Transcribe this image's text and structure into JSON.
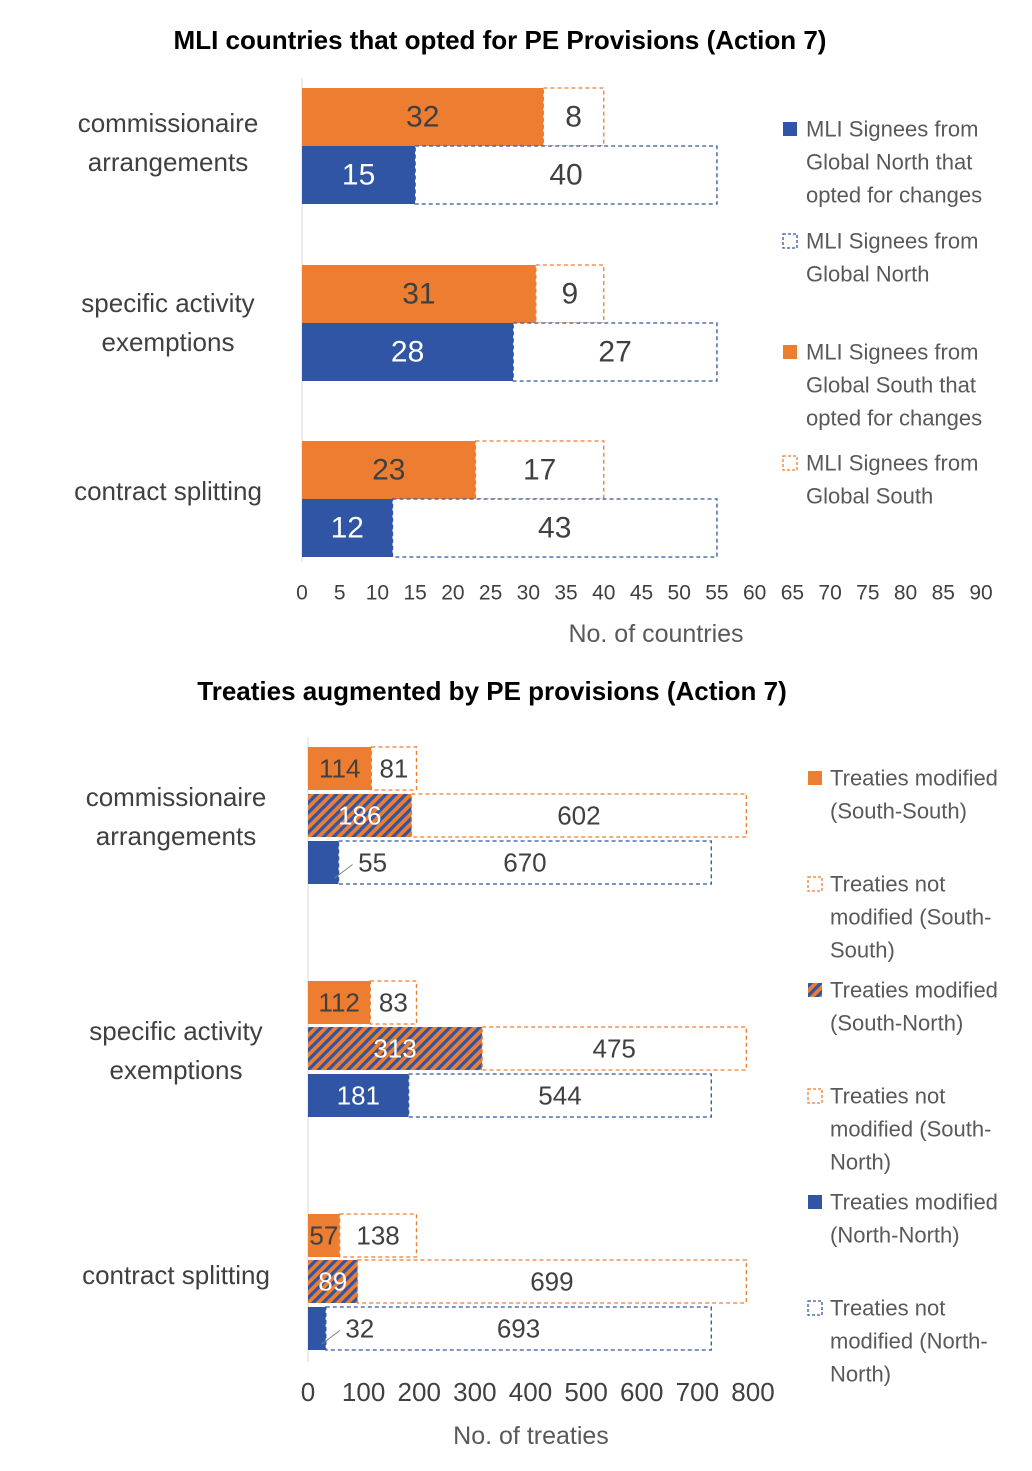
{
  "colors": {
    "north": "#2f55a4",
    "south": "#ed7d31",
    "label_dark": "#404040",
    "label_light": "#ffffff"
  },
  "chart_data": [
    {
      "type": "bar",
      "orientation": "horizontal",
      "stacked": true,
      "title": "MLI countries that opted for PE Provisions (Action 7)",
      "categories": [
        "commissionaire arrangements",
        "specific activity exemptions",
        "contract splitting"
      ],
      "category_lines": [
        [
          "commissionaire",
          "arrangements"
        ],
        [
          "specific activity",
          "exemptions"
        ],
        [
          "contract splitting"
        ]
      ],
      "xlabel": "No. of countries",
      "xlim": [
        0,
        90
      ],
      "xticks": [
        "0",
        "5",
        "10",
        "15",
        "20",
        "25",
        "30",
        "35",
        "40",
        "45",
        "50",
        "55",
        "60",
        "65",
        "70",
        "75",
        "80",
        "85",
        "90"
      ],
      "grid": false,
      "legend_position": "right",
      "series": [
        {
          "name": "MLI Signees from Global North that opted for changes",
          "group": "north",
          "style": "solid",
          "values": [
            15,
            28,
            12
          ]
        },
        {
          "name": "MLI Signees from Global North",
          "group": "north",
          "style": "dashed",
          "values": [
            40,
            27,
            43
          ]
        },
        {
          "name": "MLI Signees from Global South that opted for changes",
          "group": "south",
          "style": "solid",
          "values": [
            32,
            31,
            23
          ]
        },
        {
          "name": "MLI Signees from Global South",
          "group": "south",
          "style": "dashed",
          "values": [
            8,
            9,
            17
          ]
        }
      ],
      "legend": [
        {
          "lines": [
            "MLI Signees from",
            "Global North that",
            "opted for changes"
          ]
        },
        {
          "lines": [
            "MLI Signees from",
            "Global North"
          ]
        },
        {
          "lines": [
            "MLI Signees from",
            "Global South that",
            "opted for changes"
          ]
        },
        {
          "lines": [
            "MLI Signees from",
            "Global South"
          ]
        }
      ]
    },
    {
      "type": "bar",
      "orientation": "horizontal",
      "stacked": true,
      "title": "Treaties augmented by PE provisions (Action 7)",
      "categories": [
        "commissionaire arrangements",
        "specific activity exemptions",
        "contract splitting"
      ],
      "category_lines": [
        [
          "commissionaire",
          "arrangements"
        ],
        [
          "specific activity",
          "exemptions"
        ],
        [
          "contract splitting"
        ]
      ],
      "xlabel": "No. of treaties",
      "xlim": [
        0,
        800
      ],
      "xticks": [
        "0",
        "100",
        "200",
        "300",
        "400",
        "500",
        "600",
        "700",
        "800"
      ],
      "grid": false,
      "legend_position": "right",
      "series": [
        {
          "name": "Treaties modified (South-South)",
          "group": "south",
          "style": "solid",
          "values": [
            114,
            112,
            57
          ]
        },
        {
          "name": "Treaties not modified (South-South)",
          "group": "south",
          "style": "dashed",
          "values": [
            81,
            83,
            138
          ]
        },
        {
          "name": "Treaties modified (South-North)",
          "group": "mixed",
          "style": "hatched",
          "values": [
            186,
            313,
            89
          ]
        },
        {
          "name": "Treaties not modified (South-North)",
          "group": "mixed",
          "style": "dashed",
          "values": [
            602,
            475,
            699
          ]
        },
        {
          "name": "Treaties modified (North-North)",
          "group": "north",
          "style": "solid",
          "values": [
            55,
            181,
            32
          ]
        },
        {
          "name": "Treaties not modified (North-North)",
          "group": "north",
          "style": "dashed",
          "values": [
            670,
            544,
            693
          ]
        }
      ],
      "legend": [
        {
          "lines": [
            "Treaties modified",
            "(South-South)"
          ]
        },
        {
          "lines": [
            "Treaties not",
            "modified (South-",
            "South)"
          ]
        },
        {
          "lines": [
            "Treaties modified",
            "(South-North)"
          ]
        },
        {
          "lines": [
            "Treaties not",
            "modified (South-",
            "North)"
          ]
        },
        {
          "lines": [
            "Treaties modified",
            "(North-North)"
          ]
        },
        {
          "lines": [
            "Treaties not",
            "modified (North-",
            "North)"
          ]
        }
      ]
    }
  ]
}
